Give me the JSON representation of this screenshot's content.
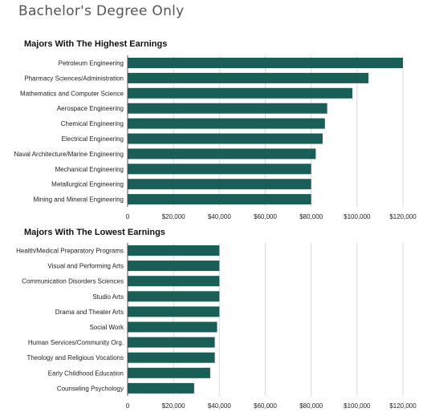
{
  "page_title": "Bachelor's Degree Only",
  "colors": {
    "bar": "#1a5e58",
    "grid": "#d9d9d9",
    "axis": "#555555"
  },
  "chart_data": [
    {
      "type": "bar",
      "orientation": "horizontal",
      "title": "Majors With The Highest Earnings",
      "categories": [
        "Petroleum Engineering",
        "Pharmacy Sciences/Administration",
        "Mathematics and Computer Science",
        "Aerospace Engineering",
        "Chemical Engineering",
        "Electrical Engineering",
        "Naval Architecture/Marine Engineering",
        "Mechanical Engineering",
        "Metallurgical Engineering",
        "Mining and Mineral Engineering"
      ],
      "values": [
        120000,
        105000,
        98000,
        87000,
        86000,
        85000,
        82000,
        80000,
        80000,
        80000
      ],
      "xlim": [
        0,
        120000
      ],
      "xticks": [
        0,
        20000,
        40000,
        60000,
        80000,
        100000,
        120000
      ],
      "xtick_labels": [
        "0",
        "$20,000",
        "$40,000",
        "$60,000",
        "$80,000",
        "$100,000",
        "$120,000"
      ],
      "grid": true
    },
    {
      "type": "bar",
      "orientation": "horizontal",
      "title": "Majors With The Lowest  Earnings",
      "categories": [
        "Health/Medical Preparatory Programs",
        "Visual and Performing Arts",
        "Communication Disorders Sciences",
        "Studio Arts",
        "Drama and Theater Arts",
        "Social Work",
        "Human Services/Community Org.",
        "Theology and Religious Vocations",
        "Early Childhood Education",
        "Counseling Psychology"
      ],
      "values": [
        40000,
        40000,
        40000,
        40000,
        40000,
        39000,
        38000,
        38000,
        36000,
        29000
      ],
      "xlim": [
        0,
        120000
      ],
      "xticks": [
        0,
        20000,
        40000,
        60000,
        80000,
        100000,
        120000
      ],
      "xtick_labels": [
        "0",
        "$20,000",
        "$40,000",
        "$60,000",
        "$80,000",
        "$100,000",
        "$120,000"
      ],
      "grid": true
    }
  ]
}
